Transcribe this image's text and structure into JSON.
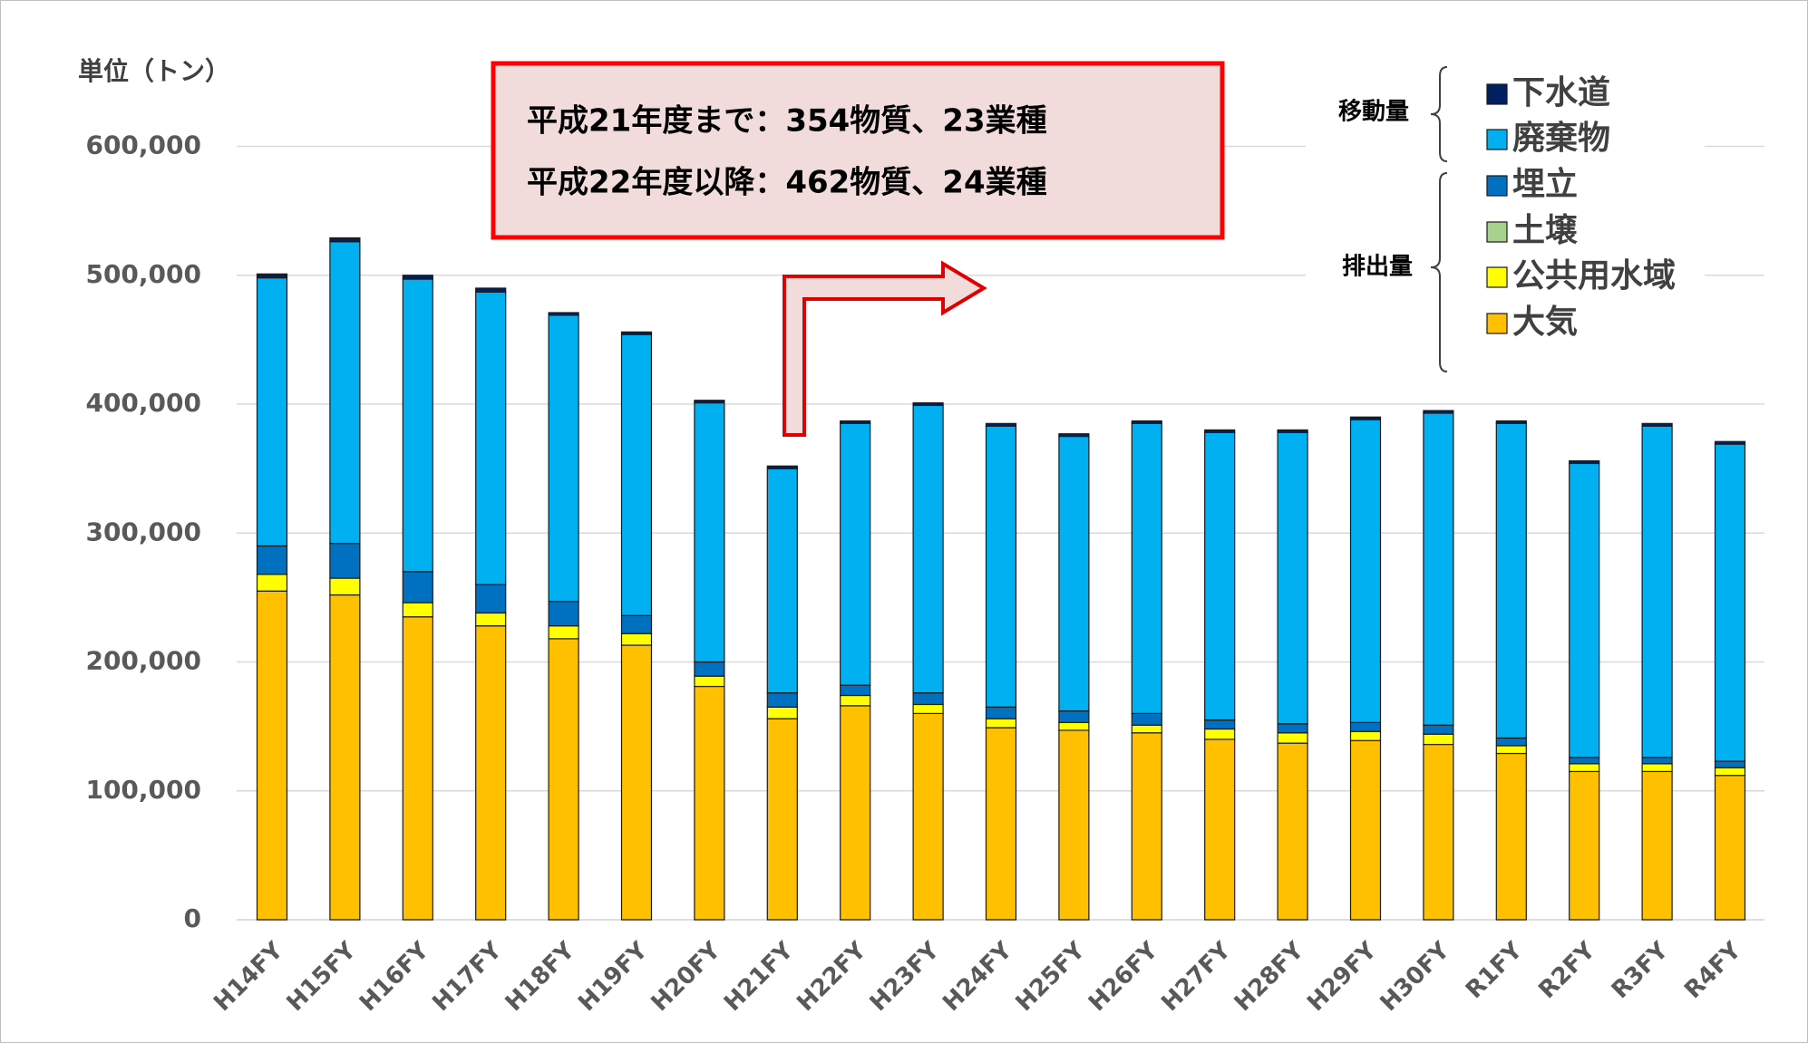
{
  "chart_data": {
    "type": "stacked-bar",
    "y_label": "単位（トン）",
    "annotation": [
      "平成21年度まで：354物質、23業種",
      "平成22年度以降：462物質、24業種"
    ],
    "legend_groups": [
      "移動量",
      "排出量"
    ],
    "categories": [
      "H14FY",
      "H15FY",
      "H16FY",
      "H17FY",
      "H18FY",
      "H19FY",
      "H20FY",
      "H21FY",
      "H22FY",
      "H23FY",
      "H24FY",
      "H25FY",
      "H26FY",
      "H27FY",
      "H28FY",
      "H29FY",
      "H30FY",
      "R1FY",
      "R2FY",
      "R3FY",
      "R4FY"
    ],
    "series": [
      {
        "name": "大気",
        "color": "#ffc000",
        "values": [
          255000,
          252000,
          235000,
          228000,
          218000,
          213000,
          181000,
          156000,
          166000,
          160000,
          149000,
          147000,
          145000,
          140000,
          137000,
          139000,
          136000,
          129000,
          115000,
          115000,
          112000
        ]
      },
      {
        "name": "公共用水域",
        "color": "#ffff00",
        "values": [
          13000,
          13000,
          11000,
          10000,
          10000,
          9000,
          8000,
          9000,
          8000,
          7000,
          7000,
          6000,
          6000,
          8000,
          8000,
          7000,
          8000,
          6000,
          6000,
          6000,
          6000
        ]
      },
      {
        "name": "土壌",
        "color": "#a9d18e",
        "values": [
          0,
          0,
          0,
          0,
          0,
          0,
          0,
          0,
          0,
          0,
          0,
          0,
          0,
          0,
          0,
          0,
          0,
          0,
          0,
          0,
          0
        ]
      },
      {
        "name": "埋立",
        "color": "#0070c0",
        "values": [
          22000,
          27000,
          24000,
          22000,
          19000,
          14000,
          11000,
          11000,
          8000,
          9000,
          9000,
          9000,
          9000,
          7000,
          7000,
          7000,
          7000,
          6000,
          5000,
          5000,
          5000
        ]
      },
      {
        "name": "廃棄物",
        "color": "#00b0f0",
        "values": [
          208000,
          234000,
          227000,
          227000,
          222000,
          218000,
          201000,
          174000,
          203000,
          223000,
          218000,
          213000,
          225000,
          223000,
          226000,
          235000,
          242000,
          244000,
          228000,
          257000,
          246000
        ]
      },
      {
        "name": "下水道",
        "color": "#002060",
        "values": [
          3000,
          3000,
          3000,
          3000,
          2000,
          2000,
          2000,
          2000,
          2000,
          2000,
          2000,
          2000,
          2000,
          2000,
          2000,
          2000,
          2000,
          2000,
          2000,
          2000,
          2000
        ]
      }
    ],
    "ylim": [
      0,
      600000
    ],
    "yticks": [
      0,
      {
        "value": 100000,
        "label": "100,000"
      },
      {
        "value": 200000,
        "label": "200,000"
      },
      {
        "value": 300000,
        "label": "300,000"
      },
      {
        "value": 400000,
        "label": "400,000"
      },
      {
        "value": 500000,
        "label": "500,000"
      },
      {
        "value": 600000,
        "label": "600,000"
      }
    ],
    "grid": true
  }
}
